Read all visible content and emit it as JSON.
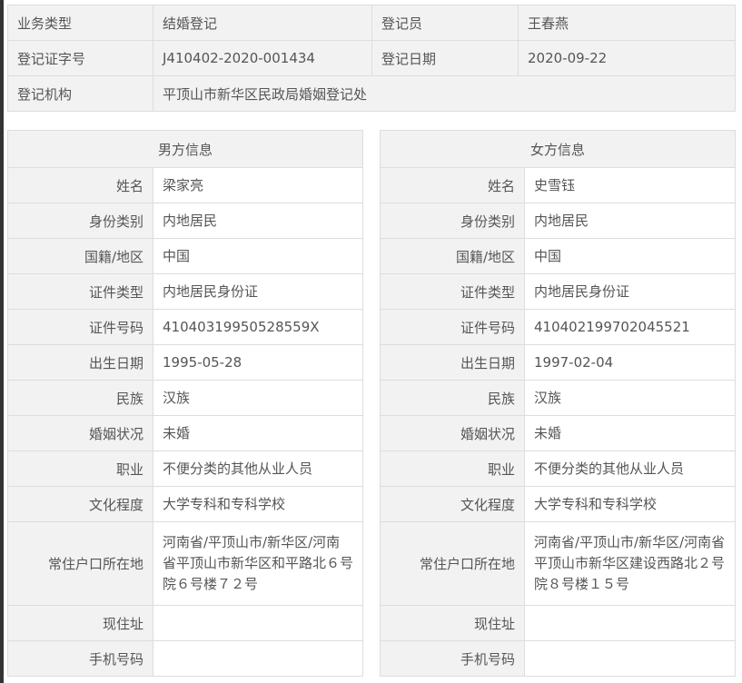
{
  "summary": {
    "type_label": "业务类型",
    "type_value": "结婚登记",
    "clerk_label": "登记员",
    "clerk_value": "王春燕",
    "cert_label": "登记证字号",
    "cert_value": "J410402-2020-001434",
    "date_label": "登记日期",
    "date_value": "2020-09-22",
    "org_label": "登记机构",
    "org_value": "平顶山市新华区民政局婚姻登记处"
  },
  "male": {
    "title": "男方信息",
    "rows": [
      {
        "label": "姓名",
        "value": "梁家亮"
      },
      {
        "label": "身份类别",
        "value": "内地居民"
      },
      {
        "label": "国籍/地区",
        "value": "中国"
      },
      {
        "label": "证件类型",
        "value": "内地居民身份证"
      },
      {
        "label": "证件号码",
        "value": "41040319950528559X"
      },
      {
        "label": "出生日期",
        "value": "1995-05-28"
      },
      {
        "label": "民族",
        "value": "汉族"
      },
      {
        "label": "婚姻状况",
        "value": "未婚"
      },
      {
        "label": "职业",
        "value": "不便分类的其他从业人员"
      },
      {
        "label": "文化程度",
        "value": "大学专科和专科学校"
      },
      {
        "label": "常住户口所在地",
        "value": "河南省/平顶山市/新华区/河南省平顶山市新华区和平路北６号院６号楼７２号"
      },
      {
        "label": "现住址",
        "value": ""
      },
      {
        "label": "手机号码",
        "value": ""
      }
    ]
  },
  "female": {
    "title": "女方信息",
    "rows": [
      {
        "label": "姓名",
        "value": "史雪钰"
      },
      {
        "label": "身份类别",
        "value": "内地居民"
      },
      {
        "label": "国籍/地区",
        "value": "中国"
      },
      {
        "label": "证件类型",
        "value": "内地居民身份证"
      },
      {
        "label": "证件号码",
        "value": "410402199702045521"
      },
      {
        "label": "出生日期",
        "value": "1997-02-04"
      },
      {
        "label": "民族",
        "value": "汉族"
      },
      {
        "label": "婚姻状况",
        "value": "未婚"
      },
      {
        "label": "职业",
        "value": "不便分类的其他从业人员"
      },
      {
        "label": "文化程度",
        "value": "大学专科和专科学校"
      },
      {
        "label": "常住户口所在地",
        "value": "河南省/平顶山市/新华区/河南省平顶山市新华区建设西路北２号院８号楼１５号"
      },
      {
        "label": "现住址",
        "value": ""
      },
      {
        "label": "手机号码",
        "value": ""
      }
    ]
  }
}
